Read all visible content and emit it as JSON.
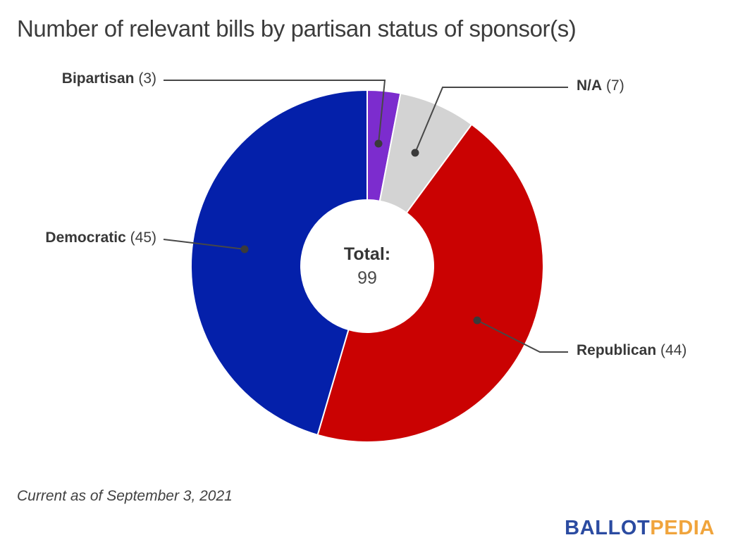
{
  "title": "Number of relevant bills by partisan status of sponsor(s)",
  "footer": {
    "note": "Current as of September 3, 2021"
  },
  "logo": {
    "part1": "BALLOT",
    "part2": "PEDIA",
    "part1_color": "#2b4ba1",
    "part2_color": "#f0a43c"
  },
  "chart_data": {
    "type": "pie",
    "subtype": "donut",
    "title": "Number of relevant bills by partisan status of sponsor(s)",
    "total": 99,
    "center_label": "Total:",
    "center_value": "99",
    "start_angle": "12-o-clock",
    "direction": "clockwise",
    "slice_gap_color": "#ffffff",
    "leader_line_color": "#474747",
    "slices": [
      {
        "label": "Bipartisan",
        "value": 3,
        "count_text": "(3)",
        "color": "#7c2cce"
      },
      {
        "label": "N/A",
        "value": 7,
        "count_text": "(7)",
        "color": "#d3d3d3"
      },
      {
        "label": "Republican",
        "value": 44,
        "count_text": "(44)",
        "color": "#ca0202"
      },
      {
        "label": "Democratic",
        "value": 45,
        "count_text": "(45)",
        "color": "#0420aa"
      }
    ]
  }
}
